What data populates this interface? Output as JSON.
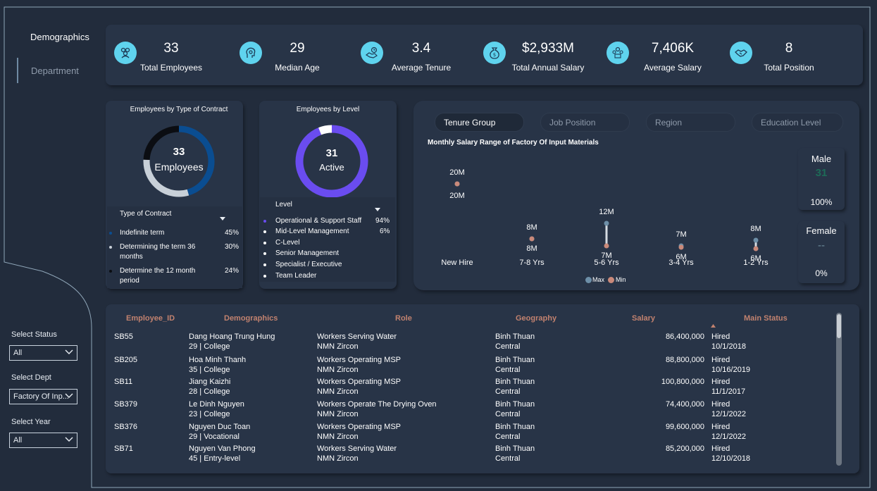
{
  "nav": {
    "demographics": "Demographics",
    "department": "Department"
  },
  "filters": {
    "status_label": "Select Status",
    "status_value": "All",
    "dept_label": "Select Dept",
    "dept_value": "Factory Of Inp...",
    "year_label": "Select Year",
    "year_value": "All"
  },
  "kpis": [
    {
      "value": "33",
      "label": "Total Employees",
      "icon": "people-group-icon"
    },
    {
      "value": "29",
      "label": "Median Age",
      "icon": "head-gear-icon"
    },
    {
      "value": "3.4",
      "label": "Average Tenure",
      "icon": "handshake-clock-icon"
    },
    {
      "value": "$2,933M",
      "label": "Total Annual Salary",
      "icon": "money-bag-icon"
    },
    {
      "value": "7,406K",
      "label": "Average Salary",
      "icon": "team-money-icon"
    },
    {
      "value": "8",
      "label": "Total Position",
      "icon": "handshake-icon"
    }
  ],
  "contract_donut": {
    "title": "Employees by Type of Contract",
    "center_value": "33",
    "center_label": "Employees",
    "legend_header": "Type of Contract",
    "items": [
      {
        "label_line1": "Indefinite term",
        "label_line2": "",
        "pct": "45%",
        "value": 45,
        "color": "#0a4d91"
      },
      {
        "label_line1": "Determining the term 36",
        "label_line2": "months",
        "pct": "30%",
        "value": 30,
        "color": "#c8d0d8"
      },
      {
        "label_line1": "Determine the 12 month",
        "label_line2": "period",
        "pct": "24%",
        "value": 24,
        "color": "#0b0d12"
      }
    ]
  },
  "level_donut": {
    "title": "Employees by Level",
    "center_value": "31",
    "center_label": "Active",
    "legend_header": "Level",
    "items": [
      {
        "label": "Operational & Support Staff",
        "pct": "94%",
        "value": 94,
        "color": "#6a4cf0"
      },
      {
        "label": "Mid-Level Management",
        "pct": "6%",
        "value": 6,
        "color": "#ffffff"
      },
      {
        "label": "C-Level",
        "pct": ""
      },
      {
        "label": "Senior Management",
        "pct": ""
      },
      {
        "label": "Specialist / Executive",
        "pct": ""
      },
      {
        "label": "Team Leader",
        "pct": ""
      }
    ]
  },
  "tabs": [
    "Tenure Group",
    "Job Position",
    "Region",
    "Education Level"
  ],
  "range_chart": {
    "title": "Monthly Salary Range of Factory Of Input Materials",
    "legend_max": "Max",
    "legend_min": "Min",
    "max_color": "#6d8fa8",
    "min_color": "#c9897a"
  },
  "chart_data": {
    "type": "range",
    "categories": [
      "New Hire",
      "7-8 Yrs",
      "5-6 Yrs",
      "3-4 Yrs",
      "1-2 Yrs"
    ],
    "series": [
      {
        "name": "Max",
        "values": [
          20,
          8,
          12,
          7,
          8
        ]
      },
      {
        "name": "Min",
        "values": [
          20,
          8,
          7,
          6,
          6
        ]
      }
    ],
    "max_labels": [
      "20M",
      "8M",
      "12M",
      "7M",
      "8M"
    ],
    "min_labels": [
      "20M",
      "8M",
      "7M",
      "6M",
      "6M"
    ],
    "title": "Monthly Salary Range of Factory Of Input Materials",
    "ylim": [
      0,
      22
    ]
  },
  "gender": {
    "male": {
      "title": "Male",
      "count": "31",
      "pct": "100%"
    },
    "female": {
      "title": "Female",
      "count": "--",
      "pct": "0%"
    }
  },
  "table": {
    "headers": [
      "Employee_ID",
      "Demographics",
      "Role",
      "Geography",
      "Salary",
      "Main Status"
    ],
    "rows": [
      {
        "id": "SB55",
        "name": "Dang Hoang Trung Hung",
        "demo": "29 | College",
        "role": "Workers Serving Water",
        "company": "NMN Zircon",
        "province": "Binh Thuan",
        "region": "Central",
        "salary": "86,400,000",
        "status": "Hired",
        "date": "10/1/2018"
      },
      {
        "id": "SB205",
        "name": "Hoa Minh Thanh",
        "demo": "35 | College",
        "role": "Workers Operating MSP",
        "company": "NMN Zircon",
        "province": "Binh Thuan",
        "region": "Central",
        "salary": "88,800,000",
        "status": "Hired",
        "date": "10/16/2019"
      },
      {
        "id": "SB11",
        "name": "Jiang Kaizhi",
        "demo": "28 | College",
        "role": "Workers Operating MSP",
        "company": "NMN Zircon",
        "province": "Binh Thuan",
        "region": "Central",
        "salary": "100,800,000",
        "status": "Hired",
        "date": "11/1/2017"
      },
      {
        "id": "SB379",
        "name": "Le Dinh Nguyen",
        "demo": "23 | College",
        "role": "Workers Operate The Drying Oven",
        "company": "NMN Zircon",
        "province": "Binh Thuan",
        "region": "Central",
        "salary": "74,400,000",
        "status": "Hired",
        "date": "12/1/2022"
      },
      {
        "id": "SB376",
        "name": "Nguyen Duc Toan",
        "demo": "29 | Vocational",
        "role": "Workers Operating MSP",
        "company": "NMN Zircon",
        "province": "Binh Thuan",
        "region": "Central",
        "salary": "99,600,000",
        "status": "Hired",
        "date": "12/1/2022"
      },
      {
        "id": "SB71",
        "name": "Nguyen Van Phong",
        "demo": "45 | Entry-level",
        "role": "Workers Serving Water",
        "company": "NMN Zircon",
        "province": "Binh Thuan",
        "region": "Central",
        "salary": "85,200,000",
        "status": "Hired",
        "date": "12/10/2018"
      }
    ]
  }
}
